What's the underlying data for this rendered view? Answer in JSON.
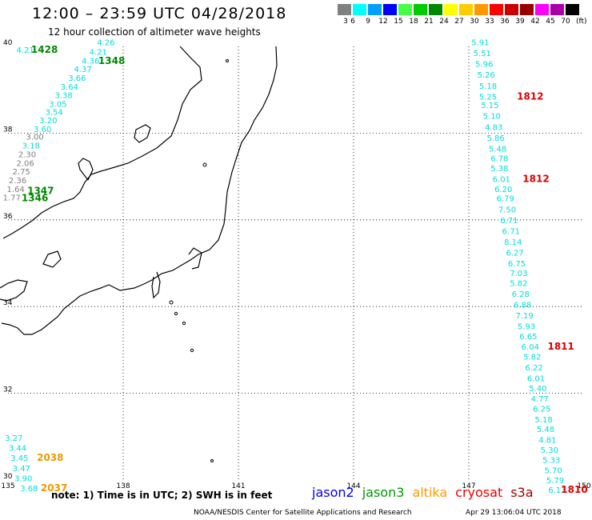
{
  "header": {
    "title": "12:00 – 23:59 UTC 04/28/2018",
    "subtitle": "12 hour collection of altimeter wave heights"
  },
  "legend": {
    "unit": "(ft)",
    "bins": [
      {
        "label": "3",
        "color": "#808080"
      },
      {
        "label": "6",
        "color": "#00ffff"
      },
      {
        "label": "9",
        "color": "#00a0ff"
      },
      {
        "label": "12",
        "color": "#0000ff"
      },
      {
        "label": "15",
        "color": "#44ff44"
      },
      {
        "label": "18",
        "color": "#00cc00"
      },
      {
        "label": "21",
        "color": "#008800"
      },
      {
        "label": "24",
        "color": "#ffff00"
      },
      {
        "label": "27",
        "color": "#ffcc00"
      },
      {
        "label": "30",
        "color": "#ff9900"
      },
      {
        "label": "33",
        "color": "#ff0000"
      },
      {
        "label": "36",
        "color": "#cc0000"
      },
      {
        "label": "39",
        "color": "#990000"
      },
      {
        "label": "42",
        "color": "#ff00ff"
      },
      {
        "label": "45",
        "color": "#aa00aa"
      },
      {
        "label": "70",
        "color": "#000000"
      }
    ]
  },
  "map": {
    "lon_range": [
      135,
      150
    ],
    "lat_range": [
      30,
      40
    ],
    "lon_ticks": [
      "135",
      "138",
      "141",
      "144",
      "147",
      "150"
    ],
    "lat_ticks": [
      "40",
      "38",
      "36",
      "34",
      "32",
      "30"
    ],
    "tracks": [
      {
        "satellite": "jason3",
        "color": "#00dddd",
        "points": [
          {
            "v": "4.21",
            "lon": 135.45,
            "lat": 39.93,
            "c": "#00dddd"
          },
          {
            "v": "4.26",
            "lon": 137.55,
            "lat": 40.1
          },
          {
            "v": "4.21",
            "lon": 137.35,
            "lat": 39.88
          },
          {
            "v": "4.36",
            "lon": 137.15,
            "lat": 39.68
          },
          {
            "v": "4.37",
            "lon": 136.95,
            "lat": 39.48
          },
          {
            "v": "3.66",
            "lon": 136.8,
            "lat": 39.28
          },
          {
            "v": "3.64",
            "lon": 136.6,
            "lat": 39.08
          },
          {
            "v": "3.38",
            "lon": 136.45,
            "lat": 38.88
          },
          {
            "v": "3.05",
            "lon": 136.3,
            "lat": 38.68
          },
          {
            "v": "3.54",
            "lon": 136.2,
            "lat": 38.5
          },
          {
            "v": "3.20",
            "lon": 136.05,
            "lat": 38.3
          },
          {
            "v": "3.60",
            "lon": 135.9,
            "lat": 38.1
          },
          {
            "v": "3.00",
            "lon": 135.7,
            "lat": 37.92,
            "c": "#808080"
          },
          {
            "v": "3.18",
            "lon": 135.6,
            "lat": 37.72
          },
          {
            "v": "2.30",
            "lon": 135.5,
            "lat": 37.52,
            "c": "#808080"
          },
          {
            "v": "2.06",
            "lon": 135.45,
            "lat": 37.32,
            "c": "#808080"
          },
          {
            "v": "2.75",
            "lon": 135.35,
            "lat": 37.12,
            "c": "#808080"
          },
          {
            "v": "2.36",
            "lon": 135.25,
            "lat": 36.92,
            "c": "#808080"
          },
          {
            "v": "1.64",
            "lon": 135.2,
            "lat": 36.72,
            "c": "#808080"
          },
          {
            "v": "1.77",
            "lon": 135.1,
            "lat": 36.52,
            "c": "#808080"
          }
        ]
      },
      {
        "satellite": "jason3",
        "color": "#00dddd",
        "points": [
          {
            "v": "5.91",
            "lon": 147.3,
            "lat": 40.1
          },
          {
            "v": "5.51",
            "lon": 147.35,
            "lat": 39.85
          },
          {
            "v": "5.96",
            "lon": 147.4,
            "lat": 39.6
          },
          {
            "v": "5.26",
            "lon": 147.45,
            "lat": 39.35
          },
          {
            "v": "5.18",
            "lon": 147.5,
            "lat": 39.1
          },
          {
            "v": "5.25",
            "lon": 147.5,
            "lat": 38.85
          },
          {
            "v": "5.15",
            "lon": 147.55,
            "lat": 38.65
          },
          {
            "v": "5.10",
            "lon": 147.6,
            "lat": 38.4
          },
          {
            "v": "4.83",
            "lon": 147.65,
            "lat": 38.15
          },
          {
            "v": "5.86",
            "lon": 147.7,
            "lat": 37.9
          },
          {
            "v": "5.48",
            "lon": 147.75,
            "lat": 37.65
          },
          {
            "v": "6.78",
            "lon": 147.8,
            "lat": 37.43
          },
          {
            "v": "5.38",
            "lon": 147.8,
            "lat": 37.2
          },
          {
            "v": "6.01",
            "lon": 147.85,
            "lat": 36.95
          },
          {
            "v": "6.20",
            "lon": 147.9,
            "lat": 36.72
          },
          {
            "v": "6.79",
            "lon": 147.95,
            "lat": 36.5
          },
          {
            "v": "7.50",
            "lon": 148.0,
            "lat": 36.25
          },
          {
            "v": "6.71",
            "lon": 148.05,
            "lat": 36.0
          },
          {
            "v": "6.71",
            "lon": 148.1,
            "lat": 35.75
          },
          {
            "v": "8.14",
            "lon": 148.15,
            "lat": 35.5
          },
          {
            "v": "6.27",
            "lon": 148.2,
            "lat": 35.25
          },
          {
            "v": "6.75",
            "lon": 148.25,
            "lat": 35.0
          },
          {
            "v": "7.03",
            "lon": 148.3,
            "lat": 34.78
          },
          {
            "v": "5.82",
            "lon": 148.3,
            "lat": 34.55
          },
          {
            "v": "6.28",
            "lon": 148.35,
            "lat": 34.3
          },
          {
            "v": "6.88",
            "lon": 148.4,
            "lat": 34.05
          },
          {
            "v": "7.19",
            "lon": 148.45,
            "lat": 33.8
          },
          {
            "v": "5.93",
            "lon": 148.5,
            "lat": 33.55
          },
          {
            "v": "6.65",
            "lon": 148.55,
            "lat": 33.32
          },
          {
            "v": "6.04",
            "lon": 148.6,
            "lat": 33.08
          },
          {
            "v": "5.82",
            "lon": 148.65,
            "lat": 32.85
          },
          {
            "v": "6.22",
            "lon": 148.7,
            "lat": 32.6
          },
          {
            "v": "6.01",
            "lon": 148.75,
            "lat": 32.35
          },
          {
            "v": "5.40",
            "lon": 148.8,
            "lat": 32.12
          },
          {
            "v": "4.77",
            "lon": 148.85,
            "lat": 31.88
          },
          {
            "v": "6.25",
            "lon": 148.9,
            "lat": 31.65
          },
          {
            "v": "5.18",
            "lon": 148.95,
            "lat": 31.4
          },
          {
            "v": "5.48",
            "lon": 149.0,
            "lat": 31.18
          },
          {
            "v": "4.81",
            "lon": 149.05,
            "lat": 30.93
          },
          {
            "v": "5.30",
            "lon": 149.1,
            "lat": 30.7
          },
          {
            "v": "5.33",
            "lon": 149.15,
            "lat": 30.47
          },
          {
            "v": "5.70",
            "lon": 149.2,
            "lat": 30.23
          },
          {
            "v": "5.79",
            "lon": 149.25,
            "lat": 30.0
          },
          {
            "v": "6.13",
            "lon": 149.3,
            "lat": 29.78
          }
        ]
      },
      {
        "satellite": "jason3",
        "color": "#00dddd",
        "points": [
          {
            "v": "3.27",
            "lon": 135.15,
            "lat": 30.98
          },
          {
            "v": "3.44",
            "lon": 135.25,
            "lat": 30.75
          },
          {
            "v": "3.45",
            "lon": 135.3,
            "lat": 30.52
          },
          {
            "v": "3.47",
            "lon": 135.35,
            "lat": 30.28
          },
          {
            "v": "3.90",
            "lon": 135.4,
            "lat": 30.05
          },
          {
            "v": "3.68",
            "lon": 135.55,
            "lat": 29.82
          }
        ]
      }
    ],
    "time_labels": [
      {
        "t": "1428",
        "lon": 135.95,
        "lat": 39.93,
        "color": "#008800"
      },
      {
        "t": "1348",
        "lon": 137.7,
        "lat": 39.67,
        "color": "#008800"
      },
      {
        "t": "1347",
        "lon": 135.85,
        "lat": 36.67,
        "color": "#008800"
      },
      {
        "t": "1346",
        "lon": 135.7,
        "lat": 36.5,
        "color": "#008800"
      },
      {
        "t": "1812",
        "lon": 148.6,
        "lat": 38.85,
        "color": "#dd0000"
      },
      {
        "t": "1812",
        "lon": 148.75,
        "lat": 36.95,
        "color": "#dd0000"
      },
      {
        "t": "1811",
        "lon": 149.4,
        "lat": 33.08,
        "color": "#dd0000"
      },
      {
        "t": "1810",
        "lon": 149.75,
        "lat": 29.78,
        "color": "#dd0000"
      },
      {
        "t": "2038",
        "lon": 136.1,
        "lat": 30.52,
        "color": "#ee9900"
      },
      {
        "t": "2037",
        "lon": 136.2,
        "lat": 29.82,
        "color": "#ee9900"
      }
    ]
  },
  "footer": {
    "note": "note:  1) Time is in UTC;  2) SWH is in feet",
    "satellites": [
      {
        "name": "jason2",
        "color": "#0000ee"
      },
      {
        "name": "jason3",
        "color": "#009900"
      },
      {
        "name": "altika",
        "color": "#ff9900"
      },
      {
        "name": "cryosat",
        "color": "#ee0000"
      },
      {
        "name": "s3a",
        "color": "#990000"
      }
    ],
    "credit": "NOAA/NESDIS Center for Satellite Applications and Research",
    "timestamp": "Apr 29 13:06:04 UTC 2018"
  }
}
